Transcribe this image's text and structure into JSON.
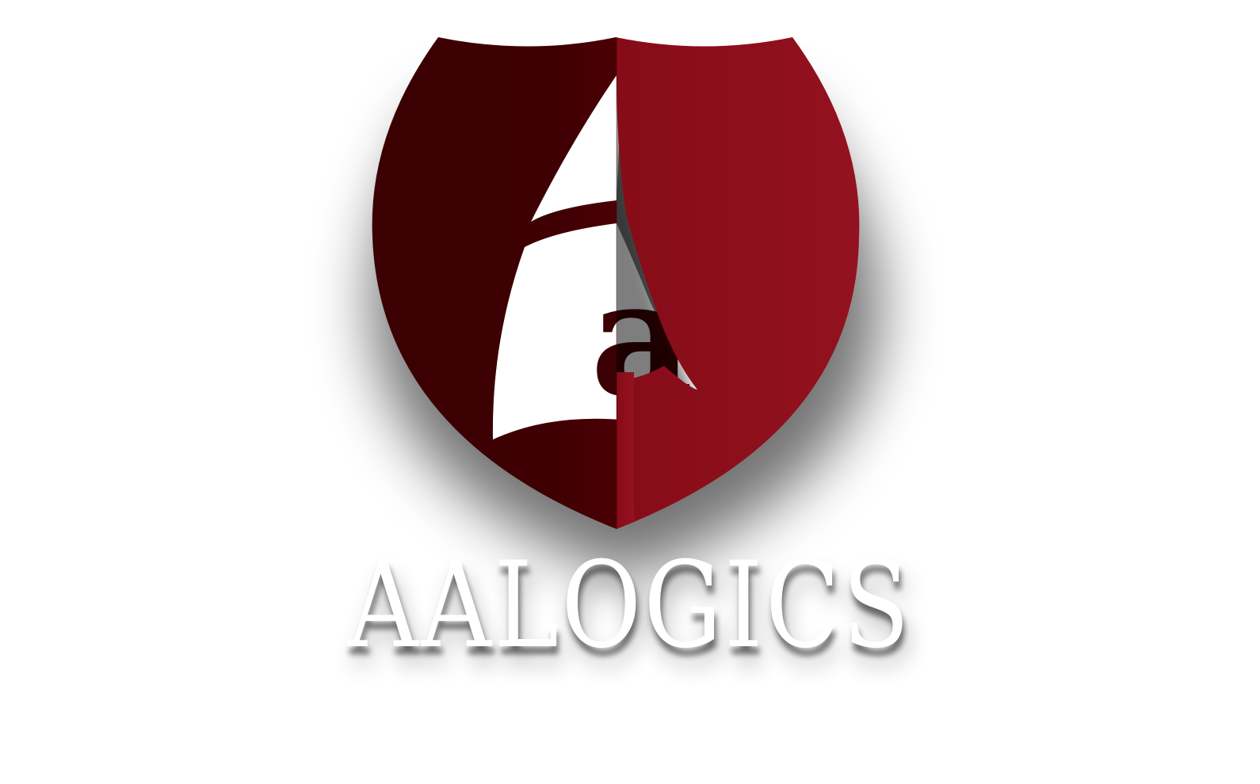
{
  "brand": {
    "name": "AALOGICS",
    "monogram_letter": "a"
  },
  "colors": {
    "background": "#ffffff",
    "shield_dark": "#3a0003",
    "shield_light": "#8e0f1c",
    "letter": "#ffffff"
  },
  "icons": {
    "logo": "shield-with-sail-a-icon"
  }
}
